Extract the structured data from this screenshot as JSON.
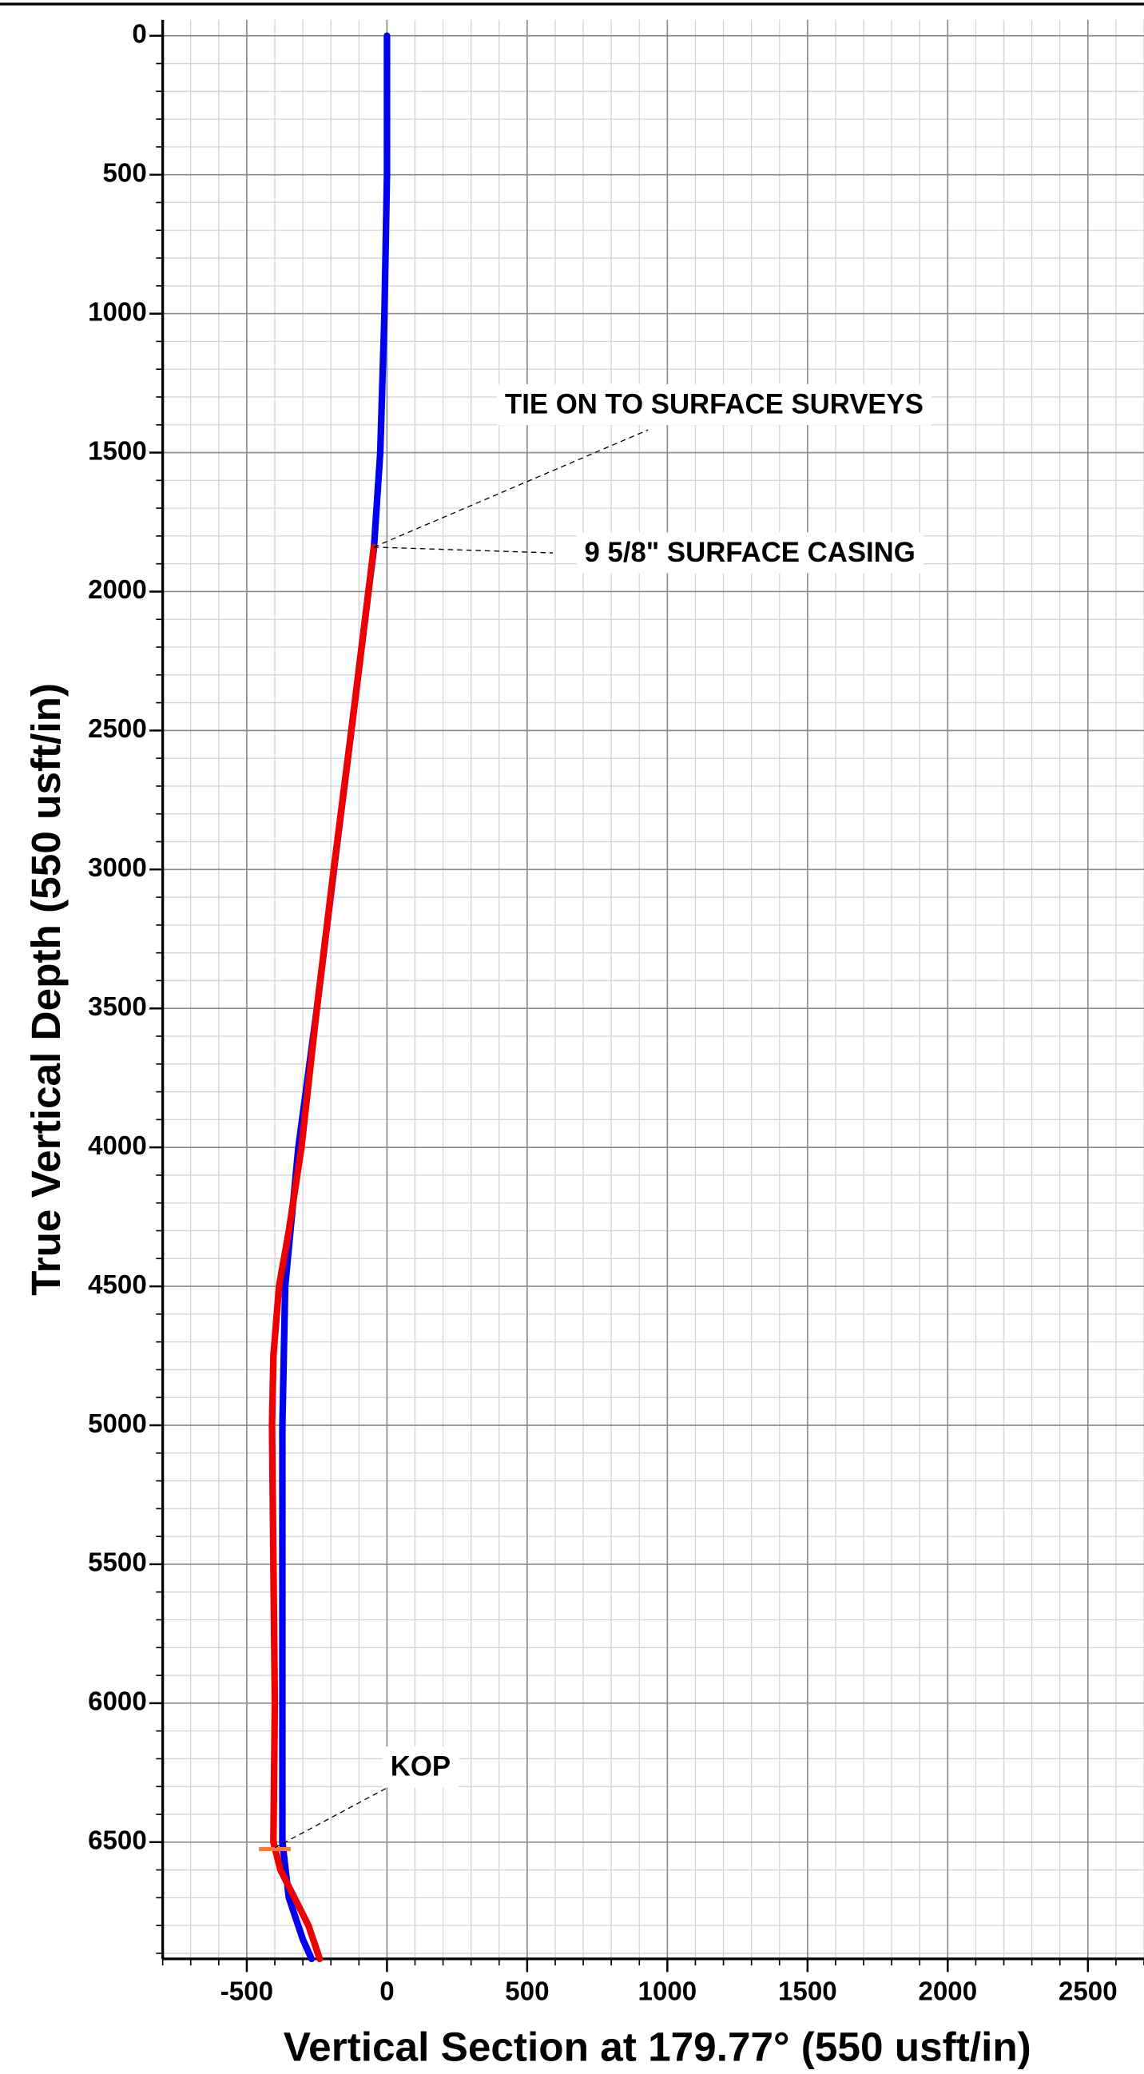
{
  "chart_data": {
    "type": "line",
    "xlabel": "Vertical Section at 179.77° (550 usft/in)",
    "ylabel": "True Vertical Depth (550 usft/in)",
    "xlim": [
      -800,
      2700
    ],
    "ylim": [
      -57,
      6920
    ],
    "y_inverted": true,
    "xticks": [
      -500,
      0,
      500,
      1000,
      1500,
      2000,
      2500
    ],
    "yticks": [
      0,
      500,
      1000,
      1500,
      2000,
      2500,
      3000,
      3500,
      4000,
      4500,
      5000,
      5500,
      6000,
      6500
    ],
    "grid": true,
    "minor_grid": 100,
    "series": [
      {
        "color": "#0000ee",
        "x": [
          0,
          0,
          -9,
          -24,
          -47,
          -66,
          -127,
          -189,
          -250,
          -316,
          -363,
          -373,
          -373,
          -373,
          -350,
          -300,
          -269
        ],
        "y": [
          0,
          500,
          1000,
          1500,
          1850,
          2000,
          2500,
          3000,
          3500,
          4000,
          4500,
          5000,
          5500,
          6500,
          6700,
          6850,
          6920
        ]
      },
      {
        "color": "#ee0000",
        "x": [
          -47,
          -66,
          -127,
          -190,
          -250,
          -305,
          -350,
          -385,
          -405,
          -410,
          -405,
          -400,
          -405,
          -380,
          -330,
          -280,
          -240
        ],
        "y": [
          1840,
          2000,
          2500,
          3000,
          3500,
          4000,
          4300,
          4500,
          4750,
          5000,
          5500,
          6000,
          6500,
          6600,
          6700,
          6800,
          6920
        ]
      }
    ],
    "kop_marker": {
      "color": "#ff7733",
      "x": -400,
      "y": 6525
    },
    "annotations": [
      {
        "text": "TIE ON TO SURFACE SURVEYS",
        "x": -47,
        "y": 1840
      },
      {
        "text": "9 5/8\" SURFACE CASING",
        "x": -47,
        "y": 1840
      },
      {
        "text": "KOP",
        "x": -400,
        "y": 6520
      }
    ]
  }
}
